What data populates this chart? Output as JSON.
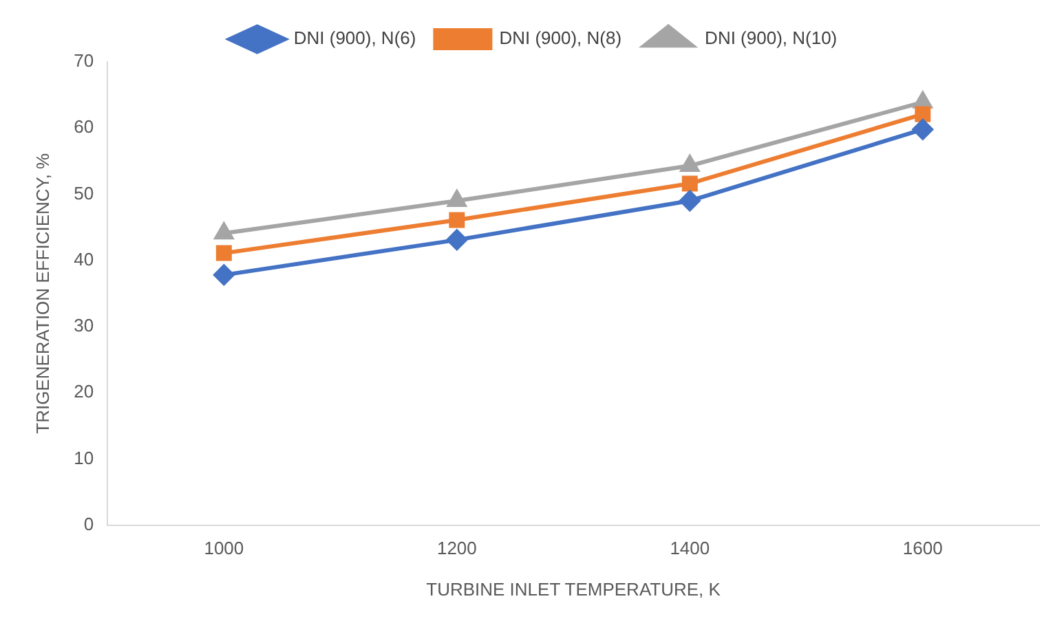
{
  "chart_data": {
    "type": "line",
    "xlabel": "TURBINE INLET TEMPERATURE, K",
    "ylabel": "TRIGENERATION EFFICIENCY, %",
    "categories": [
      "1000",
      "1200",
      "1400",
      "1600"
    ],
    "series": [
      {
        "name": "DNI (900), N(6)",
        "color": "#4472c4",
        "marker": "diamond",
        "values": [
          37.8,
          43.1,
          49.0,
          59.8
        ]
      },
      {
        "name": "DNI (900), N(8)",
        "color": "#ed7d31",
        "marker": "square",
        "values": [
          41.1,
          46.1,
          51.6,
          62.1
        ]
      },
      {
        "name": "DNI (900), N(10)",
        "color": "#a5a5a5",
        "marker": "triangle",
        "values": [
          44.1,
          49.0,
          54.3,
          63.9
        ]
      }
    ],
    "ylim": [
      0,
      70
    ],
    "yticks": [
      0,
      10,
      20,
      30,
      40,
      50,
      60,
      70
    ],
    "grid": false,
    "legend": "top",
    "line_style": "solid"
  }
}
